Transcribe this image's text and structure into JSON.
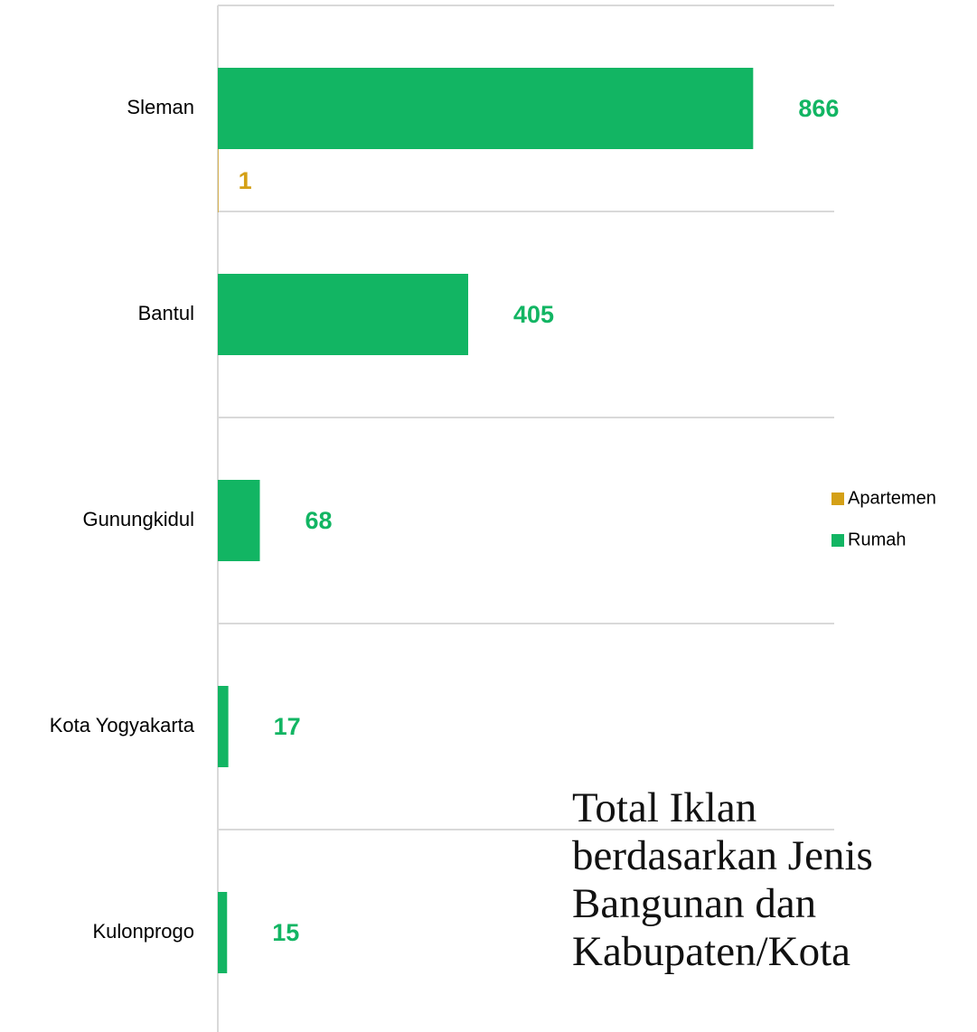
{
  "chart_data": {
    "type": "bar",
    "orientation": "horizontal",
    "title": "Total Iklan berdasarkan Jenis Bangunan dan Kabupaten/Kota",
    "categories": [
      "Sleman",
      "Bantul",
      "Gunungkidul",
      "Kota Yogyakarta",
      "Kulonprogo"
    ],
    "series": [
      {
        "name": "Rumah",
        "color": "#12b563",
        "values": [
          866,
          405,
          68,
          17,
          15
        ]
      },
      {
        "name": "Apartemen",
        "color": "#d4a017",
        "values": [
          1,
          null,
          null,
          null,
          null
        ]
      }
    ],
    "xlim": [
      0,
      1000
    ],
    "grid": true,
    "legend": "right"
  }
}
